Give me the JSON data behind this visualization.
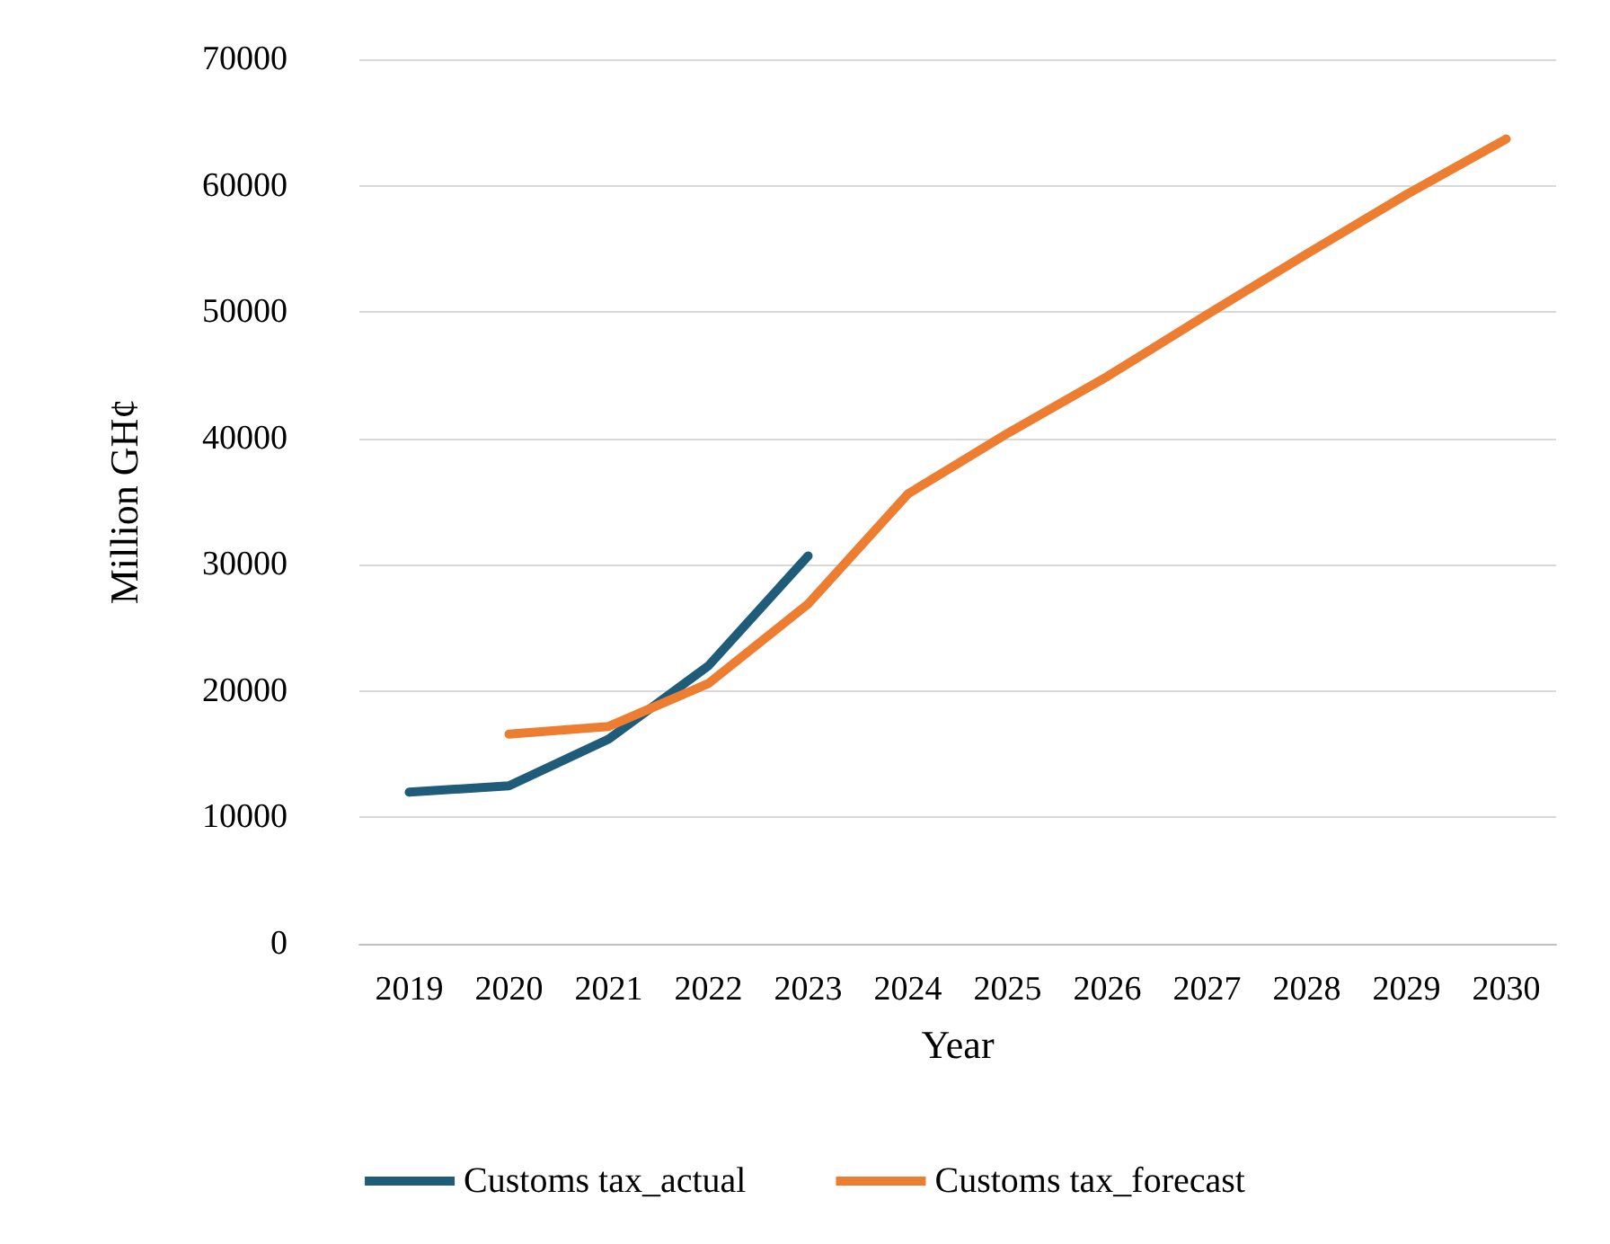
{
  "chart_data": {
    "type": "line",
    "xlabel": "Year",
    "ylabel": "Million GH¢",
    "categories": [
      "2019",
      "2020",
      "2021",
      "2022",
      "2023",
      "2024",
      "2025",
      "2026",
      "2027",
      "2028",
      "2029",
      "2030"
    ],
    "series": [
      {
        "name": "Customs tax_actual",
        "color": "#1f5c7a",
        "values": [
          12000,
          12500,
          16200,
          22000,
          30700,
          null,
          null,
          null,
          null,
          null,
          null,
          null
        ]
      },
      {
        "name": "Customs tax_forecast",
        "color": "#ed7d31",
        "values": [
          null,
          16600,
          17200,
          20600,
          26900,
          35600,
          40400,
          44900,
          49800,
          54600,
          59300,
          63700
        ]
      }
    ],
    "ylim": [
      0,
      70000
    ],
    "yticks": [
      0,
      10000,
      20000,
      30000,
      40000,
      50000,
      60000,
      70000
    ],
    "grid": "y",
    "legend": "bottom",
    "marker": "none",
    "line_style": "solid"
  }
}
